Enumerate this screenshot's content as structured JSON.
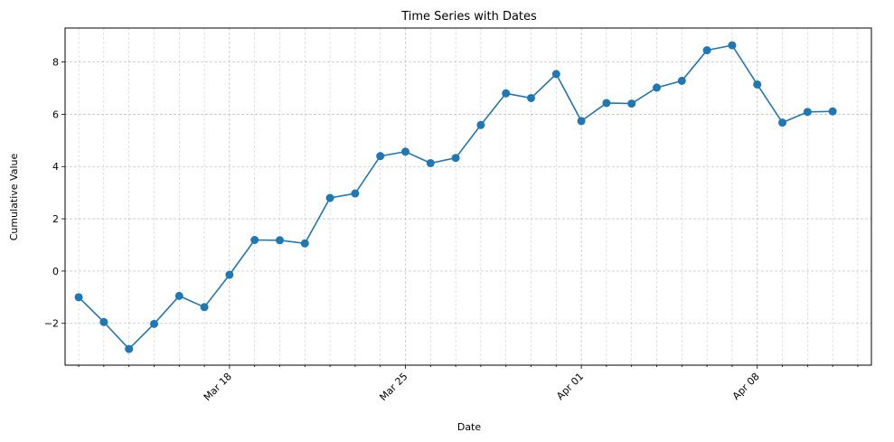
{
  "chart_data": {
    "type": "line",
    "title": "Time Series with Dates",
    "xlabel": "Date",
    "ylabel": "Cumulative Value",
    "x_axis_kind": "date",
    "xlim": [
      "2024-03-11T11:00",
      "2024-04-12T13:00"
    ],
    "ylim": [
      -3.6,
      9.3
    ],
    "y_ticks": [
      -2,
      0,
      2,
      4,
      6,
      8
    ],
    "y_tick_labels": [
      "−2",
      "0",
      "2",
      "4",
      "6",
      "8"
    ],
    "x_major_ticks": [
      "2024-03-18",
      "2024-03-25",
      "2024-04-01",
      "2024-04-08"
    ],
    "x_tick_labels": [
      "Mar 18",
      "Mar 25",
      "Apr 01",
      "Apr 08"
    ],
    "x_minor_tick_interval": "1 day",
    "grid": true,
    "legend": false,
    "series": [
      {
        "color": "#1f77b4",
        "marker": "circle",
        "x": [
          "2024-03-12",
          "2024-03-13",
          "2024-03-14",
          "2024-03-15",
          "2024-03-16",
          "2024-03-17",
          "2024-03-18",
          "2024-03-19",
          "2024-03-20",
          "2024-03-21",
          "2024-03-22",
          "2024-03-23",
          "2024-03-24",
          "2024-03-25",
          "2024-03-26",
          "2024-03-27",
          "2024-03-28",
          "2024-03-29",
          "2024-03-30",
          "2024-03-31",
          "2024-04-01",
          "2024-04-02",
          "2024-04-03",
          "2024-04-04",
          "2024-04-05",
          "2024-04-06",
          "2024-04-07",
          "2024-04-08",
          "2024-04-09",
          "2024-04-10",
          "2024-04-11"
        ],
        "y": [
          -1.0,
          -1.95,
          -2.98,
          -2.02,
          -0.95,
          -1.38,
          -0.14,
          1.19,
          1.18,
          1.06,
          2.8,
          2.97,
          4.4,
          4.57,
          4.13,
          4.33,
          5.59,
          6.8,
          6.62,
          7.54,
          5.74,
          6.43,
          6.41,
          7.02,
          7.28,
          8.45,
          8.64,
          7.14,
          5.68,
          6.09,
          6.11
        ]
      }
    ]
  }
}
